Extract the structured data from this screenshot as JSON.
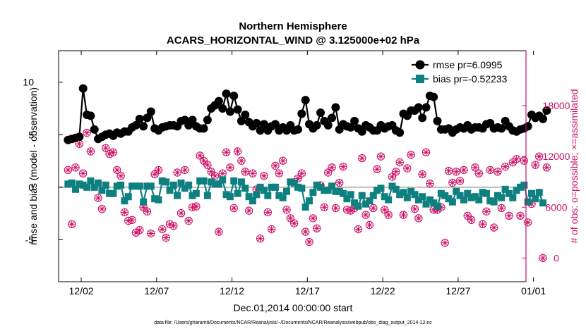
{
  "chart_data": {
    "type": "line",
    "title": "Northern Hemisphere",
    "subtitle": "ACARS_HORIZONTAL_WIND @ 3.125000e+02 hPa",
    "xlabel": "Dec.01,2014 00:00:00 start",
    "ylabel_left": "rmse and bias (model - observation)",
    "ylabel_right": "# of obs: o=possible; ×=assimilated",
    "footer_note": "data file: /Users/gharamti/Documents/NCAR/Reanalysis/~/Documents/NCAR/Reanalysis/webpub/obs_diag_output_2014-12.nc",
    "x_range_days": [
      0.5,
      31.5
    ],
    "ylim_left": [
      -9,
      13
    ],
    "ylim_right": [
      -2800,
      24500
    ],
    "x_tick_days": [
      2,
      7,
      12,
      17,
      22,
      27,
      32
    ],
    "x_tick_labels": [
      "12/02",
      "12/07",
      "12/12",
      "12/17",
      "12/22",
      "12/27",
      "01/01"
    ],
    "y_left_ticks": [
      -5,
      0,
      5,
      10
    ],
    "y_right_ticks": [
      0,
      6000,
      12000,
      18000
    ],
    "zero_line_value": 0,
    "colors": {
      "rmse": "#000000",
      "bias": "#0e8080",
      "obs": "#cc1166",
      "zero_line": "#bdbdbd"
    },
    "legend": {
      "position": "top-right",
      "entries": [
        "rmse pr=6.0995",
        "bias pr=-0.52233"
      ]
    },
    "series": [
      {
        "name": "rmse",
        "axis": "left",
        "values": [
          4.5,
          4.6,
          4.7,
          4.8,
          9.4,
          6.9,
          6.8,
          5.5,
          4.6,
          4.8,
          5.0,
          5.1,
          4.9,
          5.2,
          5.1,
          5.3,
          5.3,
          5.7,
          5.9,
          6.5,
          5.8,
          6.6,
          7.2,
          5.6,
          5.4,
          5.7,
          5.8,
          5.9,
          5.9,
          5.8,
          6.3,
          6.4,
          5.9,
          6.4,
          5.8,
          5.6,
          5.6,
          6.4,
          7.5,
          7.8,
          8.2,
          7.5,
          8.9,
          7.2,
          8.7,
          7.4,
          6.3,
          6.9,
          6.2,
          5.8,
          6.1,
          5.4,
          6.0,
          5.4,
          5.8,
          6.0,
          5.4,
          5.7,
          5.4,
          5.9,
          5.4,
          5.5,
          7.0,
          8.3,
          6.0,
          5.6,
          5.9,
          7.1,
          6.3,
          5.9,
          6.6,
          7.6,
          5.5,
          6.0,
          5.8,
          5.7,
          6.3,
          5.6,
          5.3,
          5.9,
          5.7,
          5.4,
          5.4,
          5.9,
          5.6,
          5.8,
          5.9,
          5.4,
          5.2,
          7.0,
          6.8,
          7.3,
          7.3,
          7.6,
          6.6,
          7.6,
          8.7,
          8.6,
          6.3,
          5.5,
          5.5,
          5.6,
          5.2,
          5.5,
          5.7,
          5.6,
          5.9,
          5.5,
          5.7,
          5.7,
          5.6,
          6.0,
          6.1,
          5.6,
          5.7,
          5.6,
          6.3,
          5.8,
          5.4,
          5.3,
          5.5,
          5.6,
          5.8,
          6.9,
          6.6,
          6.8,
          6.5,
          7.3
        ]
      },
      {
        "name": "bias",
        "axis": "left",
        "values": [
          0.3,
          0.4,
          -0.2,
          0.3,
          0.2,
          0.0,
          0.6,
          0.0,
          0.4,
          -0.3,
          0.2,
          -0.6,
          -0.6,
          0.1,
          0.2,
          -1.3,
          -0.9,
          0.1,
          0.1,
          0.1,
          -1.4,
          0.1,
          0.1,
          -1.1,
          -1.2,
          0.6,
          0.5,
          -0.3,
          0.2,
          -0.8,
          0.4,
          -0.1,
          0.2,
          -0.8,
          -0.6,
          0.6,
          0.6,
          -0.8,
          0.5,
          0.3,
          0.3,
          0.7,
          -0.7,
          -0.9,
          0.6,
          -0.6,
          0.5,
          -0.1,
          -0.9,
          -1.3,
          -0.7,
          0.0,
          -0.3,
          -0.8,
          0.0,
          0.0,
          -0.8,
          -1.0,
          -0.4,
          0.5,
          0.4,
          0.0,
          -0.1,
          -1.9,
          -1.3,
          -0.5,
          0.2,
          0.0,
          -0.3,
          -0.3,
          0.1,
          -0.4,
          -0.4,
          -0.6,
          -1.1,
          -0.7,
          -1.5,
          -1.8,
          -0.8,
          -1.6,
          -1.3,
          -0.8,
          -0.3,
          -0.1,
          -0.9,
          -1.2,
          0.1,
          -0.2,
          -0.7,
          -0.5,
          -1.0,
          -0.4,
          -0.7,
          -1.2,
          -0.9,
          -1.6,
          -1.2,
          -1.5,
          -1.8,
          -0.6,
          -0.8,
          -1.1,
          -1.4,
          -0.4,
          -0.8,
          -1.2,
          -0.6,
          -1.0,
          -0.9,
          -1.2,
          -0.5,
          -0.6,
          -1.3,
          -1.4,
          -0.8,
          -1.0,
          -0.2,
          -0.6,
          -1.0,
          -0.3,
          0.0,
          0.2,
          -1.4,
          -0.6,
          -1.1,
          -0.5,
          -1.5
        ]
      },
      {
        "name": "obs_possible",
        "axis": "right",
        "values": [
          10400,
          4000,
          10700,
          13500,
          10000,
          14800,
          12600,
          15200,
          7100,
          5800,
          13000,
          12300,
          12500,
          10400,
          9700,
          5400,
          4400,
          4500,
          3000,
          3300,
          6000,
          5500,
          2900,
          9900,
          10400,
          3400,
          2400,
          4000,
          3800,
          10100,
          5300,
          10400,
          4400,
          6000,
          6100,
          12100,
          11500,
          11000,
          10200,
          9700,
          3100,
          10000,
          12500,
          10700,
          5900,
          12600,
          11500,
          10200,
          5600,
          10000,
          8100,
          2300,
          9700,
          5400,
          3400,
          10900,
          10000,
          11500,
          5700,
          4700,
          4100,
          9400,
          10000,
          3100,
          1900,
          4700,
          3500,
          8600,
          6000,
          10100,
          10700,
          5900,
          8900,
          10800,
          5700,
          5600,
          5900,
          3400,
          11800,
          5100,
          3900,
          5900,
          10500,
          12000,
          5700,
          5100,
          9600,
          10200,
          11300,
          5100,
          10600,
          12200,
          5800,
          4700,
          9900,
          12500,
          8800,
          5700,
          5700,
          6000,
          1800,
          10300,
          8900,
          10200,
          9100,
          10400,
          5000,
          4500,
          10700,
          10000,
          4000,
          5500,
          10400,
          3600,
          10200,
          5900,
          10800,
          5000,
          11300,
          11700,
          5000,
          11500,
          4200,
          6400,
          11000,
          12000,
          0,
          10700
        ]
      },
      {
        "name": "obs_assimilated",
        "axis": "right",
        "values": [
          10400,
          4000,
          10700,
          13500,
          10000,
          14800,
          12600,
          15200,
          7100,
          5800,
          13000,
          12300,
          12500,
          10400,
          9700,
          5400,
          4400,
          4500,
          3000,
          3300,
          6000,
          5500,
          2900,
          9900,
          10400,
          3400,
          2400,
          4000,
          3800,
          10100,
          5300,
          10400,
          4400,
          6000,
          6100,
          12100,
          11500,
          11000,
          10200,
          9700,
          3100,
          10000,
          12500,
          10700,
          5900,
          12600,
          11500,
          10200,
          5600,
          10000,
          8100,
          2300,
          9700,
          5400,
          3400,
          10900,
          10000,
          11500,
          5700,
          4700,
          4100,
          9400,
          10000,
          3100,
          1900,
          4700,
          3500,
          8600,
          6000,
          10100,
          10700,
          5900,
          8900,
          10800,
          5700,
          5600,
          5900,
          3400,
          11800,
          5100,
          3900,
          5900,
          10500,
          12000,
          5700,
          5100,
          9600,
          10200,
          11300,
          5100,
          10600,
          12200,
          5800,
          4700,
          9900,
          12500,
          8800,
          5700,
          5700,
          6000,
          1800,
          10300,
          8900,
          10200,
          9100,
          10400,
          5000,
          4500,
          10700,
          10000,
          4000,
          5500,
          10400,
          3600,
          10200,
          5900,
          10800,
          5000,
          11300,
          11700,
          5000,
          11500,
          4200,
          6400,
          11000,
          12000,
          0,
          10700
        ]
      }
    ]
  }
}
